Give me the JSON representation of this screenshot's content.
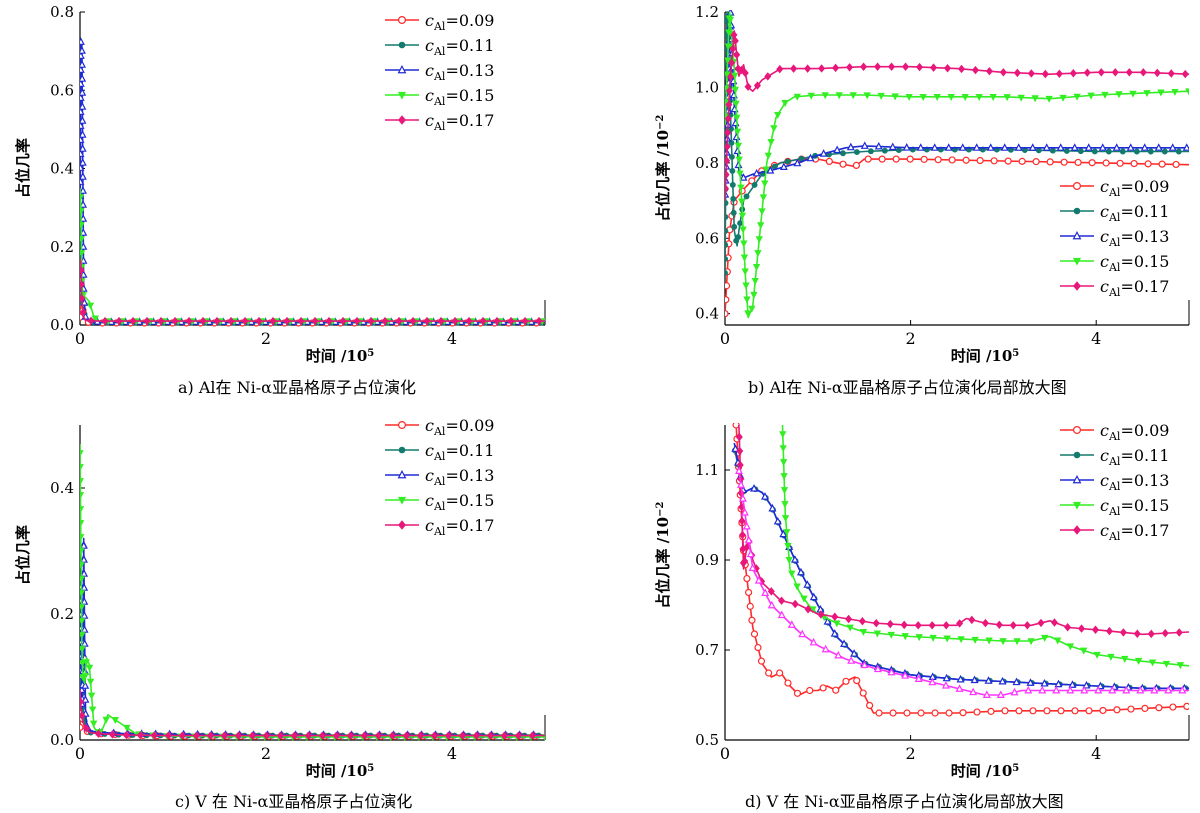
{
  "chart_data": [
    {
      "id": "a",
      "type": "line",
      "caption": "a)  Al在 Ni-α亚晶格原子占位演化",
      "xlabel": "时间 /10",
      "xlabel_exp": "5",
      "ylabel": "占位几率",
      "xlim": [
        0,
        5
      ],
      "ylim": [
        0,
        0.8
      ],
      "xticks": [
        0,
        2,
        4
      ],
      "yticks": [
        0.0,
        0.2,
        0.4,
        0.6,
        0.8
      ],
      "xtick_labels": [
        "0",
        "2",
        "4"
      ],
      "ytick_labels": [
        "0.0",
        "0.2",
        "0.4",
        "0.6",
        "0.8"
      ],
      "legend_position": "top-right",
      "series": [
        {
          "name": "c_Al=0.09",
          "color": "#ff2a2a",
          "marker": "circle-open",
          "x": [
            0,
            0.01,
            0.03,
            0.06,
            0.1,
            0.2,
            0.5,
            1,
            2,
            3,
            4,
            5
          ],
          "y": [
            0.02,
            0.1,
            0.04,
            0.01,
            0.006,
            0.005,
            0.005,
            0.005,
            0.005,
            0.005,
            0.005,
            0.005
          ]
        },
        {
          "name": "c_Al=0.11",
          "color": "#137a6e",
          "marker": "dot",
          "x": [
            0,
            0.01,
            0.03,
            0.06,
            0.1,
            0.2,
            0.5,
            1,
            2,
            3,
            4,
            5
          ],
          "y": [
            0.05,
            0.15,
            0.05,
            0.015,
            0.008,
            0.006,
            0.006,
            0.006,
            0.006,
            0.006,
            0.006,
            0.006
          ]
        },
        {
          "name": "c_Al=0.13",
          "color": "#1f2bd6",
          "marker": "triangle-open",
          "x": [
            0,
            0.01,
            0.02,
            0.03,
            0.04,
            0.06,
            0.1,
            0.2,
            0.5,
            1,
            2,
            3,
            4,
            5
          ],
          "y": [
            0.1,
            0.73,
            0.72,
            0.4,
            0.08,
            0.02,
            0.01,
            0.008,
            0.008,
            0.008,
            0.008,
            0.008,
            0.008,
            0.008
          ]
        },
        {
          "name": "c_Al=0.15",
          "color": "#33ee22",
          "marker": "triangle-down",
          "x": [
            0,
            0.01,
            0.02,
            0.04,
            0.06,
            0.1,
            0.15,
            0.2,
            0.5,
            1,
            2,
            3,
            4,
            5
          ],
          "y": [
            0.35,
            0.3,
            0.1,
            0.07,
            0.07,
            0.06,
            0.02,
            0.01,
            0.01,
            0.01,
            0.01,
            0.01,
            0.01,
            0.01
          ]
        },
        {
          "name": "c_Al=0.17",
          "color": "#e8177a",
          "marker": "diamond",
          "x": [
            0,
            0.01,
            0.02,
            0.04,
            0.06,
            0.1,
            0.2,
            0.5,
            1,
            2,
            3,
            4,
            5
          ],
          "y": [
            0.17,
            0.16,
            0.06,
            0.02,
            0.012,
            0.011,
            0.01,
            0.01,
            0.01,
            0.01,
            0.01,
            0.01,
            0.01
          ]
        }
      ]
    },
    {
      "id": "b",
      "type": "line",
      "caption": "b)  Al在 Ni-α亚晶格原子占位演化局部放大图",
      "xlabel": "时间 /10",
      "xlabel_exp": "5",
      "ylabel": "占位几率 /10",
      "ylabel_exp": "−2",
      "xlim": [
        0,
        5
      ],
      "ylim": [
        0.37,
        1.2
      ],
      "xticks": [
        0,
        2,
        4
      ],
      "yticks": [
        0.4,
        0.6,
        0.8,
        1.0,
        1.2
      ],
      "xtick_labels": [
        "0",
        "2",
        "4"
      ],
      "ytick_labels": [
        "0.4",
        "0.6",
        "0.8",
        "1.0",
        "1.2"
      ],
      "legend_position": "center-right",
      "series": [
        {
          "name": "c_Al=0.09",
          "color": "#ff2a2a",
          "marker": "circle-open",
          "x": [
            0,
            0.05,
            0.1,
            0.2,
            0.4,
            0.6,
            0.8,
            1.0,
            1.2,
            1.4,
            1.5,
            2,
            3,
            4,
            5
          ],
          "y": [
            0.4,
            0.62,
            0.7,
            0.73,
            0.78,
            0.8,
            0.81,
            0.81,
            0.8,
            0.79,
            0.81,
            0.81,
            0.805,
            0.8,
            0.795
          ]
        },
        {
          "name": "c_Al=0.11",
          "color": "#137a6e",
          "marker": "dot",
          "x": [
            0,
            0.02,
            0.05,
            0.07,
            0.1,
            0.13,
            0.15,
            0.2,
            0.4,
            0.6,
            0.8,
            1.0,
            1.5,
            2,
            3,
            4,
            5
          ],
          "y": [
            0.5,
            1.2,
            1.0,
            0.85,
            0.62,
            0.58,
            0.62,
            0.7,
            0.77,
            0.8,
            0.81,
            0.82,
            0.83,
            0.835,
            0.835,
            0.83,
            0.83
          ]
        },
        {
          "name": "c_Al=0.13",
          "color": "#1f2bd6",
          "marker": "triangle-open",
          "x": [
            0,
            0.03,
            0.06,
            0.1,
            0.15,
            0.2,
            0.3,
            0.5,
            0.8,
            1.0,
            1.3,
            1.5,
            2,
            3,
            4,
            5
          ],
          "y": [
            0.7,
            0.9,
            1.2,
            0.95,
            0.78,
            0.76,
            0.77,
            0.78,
            0.8,
            0.82,
            0.84,
            0.845,
            0.84,
            0.84,
            0.84,
            0.84
          ]
        },
        {
          "name": "c_Al=0.15",
          "color": "#33ee22",
          "marker": "triangle-down",
          "x": [
            0,
            0.05,
            0.1,
            0.13,
            0.18,
            0.22,
            0.25,
            0.3,
            0.35,
            0.45,
            0.55,
            0.65,
            0.75,
            1.0,
            1.5,
            2,
            3,
            3.5,
            4,
            4.5,
            5
          ],
          "y": [
            0.9,
            1.2,
            1.05,
            0.9,
            0.7,
            0.5,
            0.39,
            0.42,
            0.55,
            0.8,
            0.92,
            0.96,
            0.975,
            0.98,
            0.98,
            0.975,
            0.975,
            0.97,
            0.98,
            0.985,
            0.99
          ]
        },
        {
          "name": "c_Al=0.17",
          "color": "#e8177a",
          "marker": "diamond",
          "x": [
            0,
            0.05,
            0.1,
            0.15,
            0.2,
            0.25,
            0.3,
            0.4,
            0.6,
            0.8,
            1.0,
            1.5,
            2,
            2.5,
            3,
            3.5,
            4,
            4.5,
            5
          ],
          "y": [
            0.7,
            1.0,
            1.15,
            1.03,
            1.06,
            1.0,
            0.99,
            1.02,
            1.05,
            1.05,
            1.05,
            1.055,
            1.055,
            1.05,
            1.04,
            1.035,
            1.04,
            1.04,
            1.035
          ]
        }
      ]
    },
    {
      "id": "c",
      "type": "line",
      "caption": "c)  V 在 Ni-α亚晶格原子占位演化",
      "xlabel": "时间 /10",
      "xlabel_exp": "5",
      "ylabel": "占位几率",
      "xlim": [
        0,
        5
      ],
      "ylim": [
        0,
        0.5
      ],
      "xticks": [
        0,
        2,
        4
      ],
      "yticks": [
        0.0,
        0.2,
        0.4
      ],
      "xtick_labels": [
        "0",
        "2",
        "4"
      ],
      "ytick_labels": [
        "0.0",
        "0.2",
        "0.4"
      ],
      "legend_position": "top-right",
      "series": [
        {
          "name": "c_Al=0.09",
          "color": "#ff2a2a",
          "marker": "circle-open",
          "x": [
            0,
            0.01,
            0.03,
            0.06,
            0.1,
            0.2,
            0.5,
            1,
            2,
            3,
            4,
            5
          ],
          "y": [
            0.02,
            0.06,
            0.03,
            0.015,
            0.012,
            0.01,
            0.008,
            0.006,
            0.006,
            0.006,
            0.006,
            0.006
          ]
        },
        {
          "name": "c_Al=0.11",
          "color": "#137a6e",
          "marker": "dot",
          "x": [
            0,
            0.01,
            0.03,
            0.06,
            0.1,
            0.2,
            0.5,
            1,
            2,
            3,
            4,
            5
          ],
          "y": [
            0.05,
            0.12,
            0.05,
            0.02,
            0.012,
            0.01,
            0.008,
            0.007,
            0.007,
            0.007,
            0.007,
            0.007
          ]
        },
        {
          "name": "c_Al=0.13",
          "color": "#1f2bd6",
          "marker": "triangle-open",
          "x": [
            0,
            0.01,
            0.02,
            0.03,
            0.04,
            0.05,
            0.06,
            0.08,
            0.1,
            0.2,
            0.5,
            1,
            2,
            3,
            4,
            5
          ],
          "y": [
            0.1,
            0.25,
            0.05,
            0.1,
            0.32,
            0.15,
            0.04,
            0.02,
            0.015,
            0.012,
            0.01,
            0.009,
            0.008,
            0.008,
            0.008,
            0.008
          ]
        },
        {
          "name": "c_Al=0.15",
          "color": "#33ee22",
          "marker": "triangle-down",
          "x": [
            0,
            0.01,
            0.02,
            0.03,
            0.05,
            0.07,
            0.1,
            0.13,
            0.15,
            0.2,
            0.25,
            0.3,
            0.35,
            0.4,
            0.5,
            0.6,
            0.7,
            1,
            2,
            3,
            4,
            5
          ],
          "y": [
            0.47,
            0.3,
            0.15,
            0.1,
            0.09,
            0.13,
            0.12,
            0.06,
            0.02,
            0.01,
            0.02,
            0.04,
            0.035,
            0.03,
            0.02,
            0.01,
            0.008,
            0.006,
            0.005,
            0.005,
            0.005,
            0.005
          ]
        },
        {
          "name": "c_Al=0.17",
          "color": "#e8177a",
          "marker": "diamond",
          "x": [
            0,
            0.01,
            0.03,
            0.06,
            0.1,
            0.2,
            0.5,
            1,
            2,
            3,
            4,
            5
          ],
          "y": [
            0.08,
            0.05,
            0.03,
            0.02,
            0.012,
            0.01,
            0.008,
            0.007,
            0.007,
            0.007,
            0.007,
            0.007
          ]
        }
      ]
    },
    {
      "id": "d",
      "type": "line",
      "caption": "d)  V 在 Ni-α亚晶格原子占位演化局部放大图",
      "xlabel": "时间 /10",
      "xlabel_exp": "5",
      "ylabel": "占位几率 /10",
      "ylabel_exp": "−2",
      "xlim": [
        0,
        5
      ],
      "ylim": [
        0.5,
        1.2
      ],
      "xticks": [
        0,
        2,
        4
      ],
      "yticks": [
        0.5,
        0.7,
        0.9,
        1.1
      ],
      "xtick_labels": [
        "0",
        "2",
        "4"
      ],
      "ytick_labels": [
        "0.5",
        "0.7",
        "0.9",
        "1.1"
      ],
      "legend_position": "top-right",
      "series": [
        {
          "name": "c_Al=0.09",
          "color": "#ff2a2a",
          "marker": "circle-open",
          "x": [
            0.12,
            0.2,
            0.3,
            0.4,
            0.5,
            0.6,
            0.7,
            0.8,
            0.9,
            1.0,
            1.1,
            1.2,
            1.3,
            1.4,
            1.5,
            1.6,
            1.8,
            2.0,
            2.5,
            3.0,
            3.5,
            4.0,
            4.5,
            5.0
          ],
          "y": [
            1.2,
            0.92,
            0.75,
            0.67,
            0.64,
            0.65,
            0.62,
            0.6,
            0.61,
            0.61,
            0.62,
            0.61,
            0.63,
            0.64,
            0.6,
            0.56,
            0.56,
            0.56,
            0.56,
            0.565,
            0.565,
            0.565,
            0.57,
            0.575
          ]
        },
        {
          "name": "c_Al=0.11",
          "color": "#137a6e",
          "marker": "dot",
          "x": [
            0.1,
            0.2,
            0.3,
            0.4,
            0.5,
            0.6,
            0.8,
            1.0,
            1.2,
            1.5,
            2.0,
            2.5,
            3.0,
            3.5,
            4.0,
            4.5,
            5.0
          ],
          "y": [
            1.15,
            1.05,
            1.06,
            1.05,
            1.02,
            0.97,
            0.88,
            0.8,
            0.73,
            0.67,
            0.645,
            0.635,
            0.63,
            0.625,
            0.62,
            0.615,
            0.615
          ]
        },
        {
          "name": "c_Al=0.13",
          "color": "#1f2bd6",
          "marker": "triangle-open",
          "x": [
            0.1,
            0.2,
            0.3,
            0.4,
            0.5,
            0.6,
            0.8,
            1.0,
            1.2,
            1.5,
            2.0,
            2.5,
            3.0,
            3.5,
            4.0,
            4.5,
            5.0
          ],
          "y": [
            1.16,
            1.05,
            1.06,
            1.05,
            1.02,
            0.97,
            0.88,
            0.8,
            0.73,
            0.67,
            0.645,
            0.635,
            0.63,
            0.625,
            0.62,
            0.615,
            0.615
          ]
        },
        {
          "name": "c_Al=0.15",
          "color": "#33ee22",
          "marker": "triangle-down",
          "x": [
            0.62,
            0.65,
            0.7,
            0.8,
            0.9,
            1.0,
            1.2,
            1.5,
            2.0,
            2.5,
            3.0,
            3.3,
            3.5,
            3.7,
            4.0,
            4.5,
            5.0
          ],
          "y": [
            1.2,
            1.0,
            0.88,
            0.83,
            0.8,
            0.78,
            0.76,
            0.74,
            0.73,
            0.725,
            0.72,
            0.72,
            0.73,
            0.71,
            0.69,
            0.675,
            0.665
          ]
        },
        {
          "name": "c_Al=0.17",
          "color": "#e8177a",
          "marker": "diamond",
          "x": [
            0.15,
            0.2,
            0.25,
            0.3,
            0.4,
            0.6,
            0.8,
            1.0,
            1.3,
            1.6,
            2.0,
            2.5,
            2.6,
            2.8,
            3.0,
            3.3,
            3.5,
            3.7,
            4.0,
            4.5,
            5.0
          ],
          "y": [
            1.2,
            0.88,
            0.95,
            0.9,
            0.85,
            0.81,
            0.8,
            0.78,
            0.77,
            0.76,
            0.755,
            0.755,
            0.77,
            0.76,
            0.755,
            0.755,
            0.765,
            0.75,
            0.745,
            0.735,
            0.74
          ]
        },
        {
          "color": "#ff33ff",
          "marker": "triangle-open",
          "x": [
            0.15,
            0.3,
            0.5,
            0.8,
            1.0,
            1.3,
            1.6,
            2.0,
            2.4,
            2.8,
            3.0,
            3.2,
            3.5,
            4.0,
            4.5,
            5.0
          ],
          "y": [
            1.1,
            0.88,
            0.8,
            0.74,
            0.71,
            0.68,
            0.66,
            0.64,
            0.62,
            0.6,
            0.6,
            0.61,
            0.61,
            0.61,
            0.61,
            0.61
          ]
        }
      ]
    }
  ]
}
